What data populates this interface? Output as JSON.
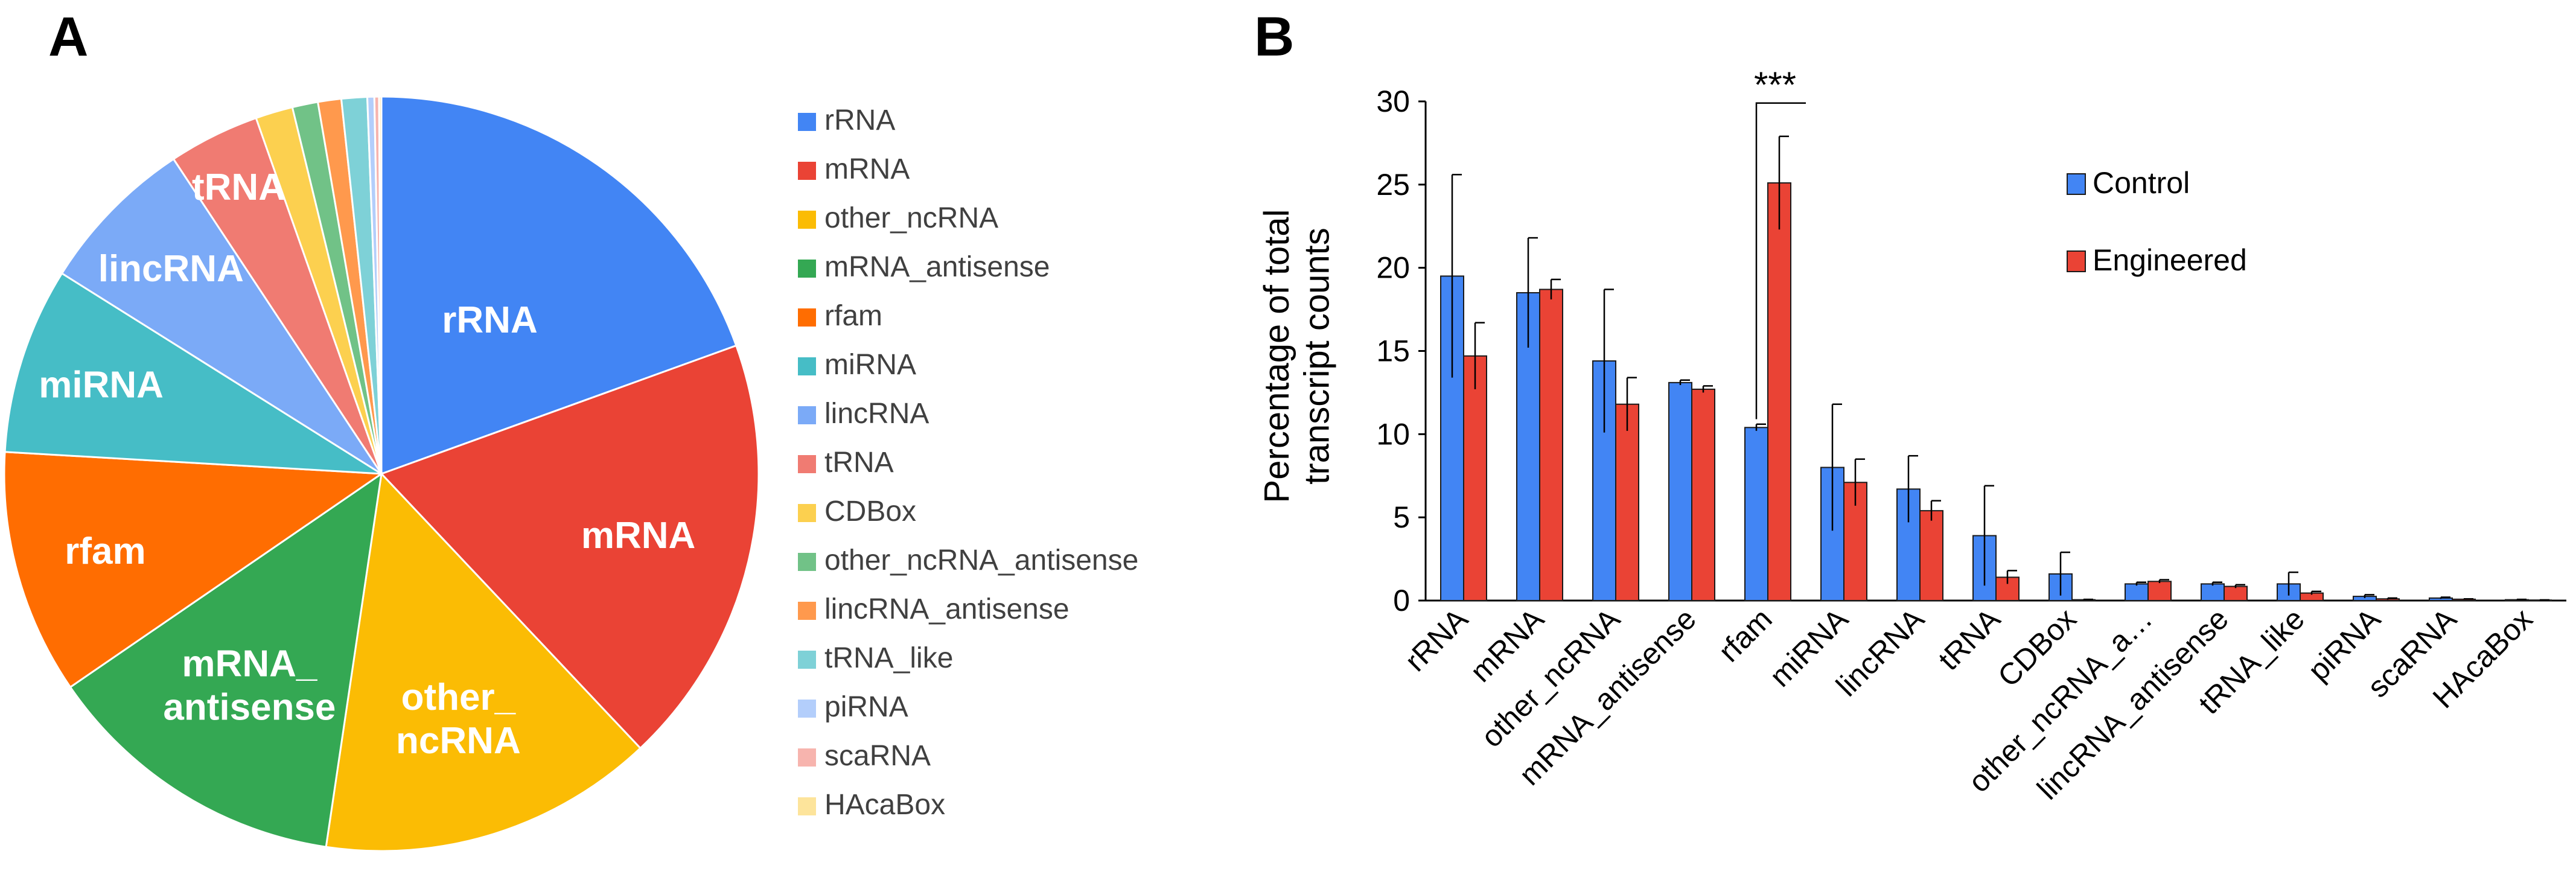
{
  "panel_labels": {
    "a": "A",
    "b": "B"
  },
  "chart_data": [
    {
      "type": "pie",
      "panel": "A",
      "categories": [
        "rRNA",
        "mRNA",
        "other_ncRNA",
        "mRNA_antisense",
        "rfam",
        "miRNA",
        "lincRNA",
        "tRNA",
        "CDBox",
        "other_ncRNA_antisense",
        "lincRNA_antisense",
        "tRNA_like",
        "piRNA",
        "scaRNA",
        "HAcaBox"
      ],
      "values": [
        19.5,
        18.5,
        14.4,
        13.1,
        10.5,
        8.0,
        6.8,
        3.9,
        1.6,
        1.1,
        1.0,
        1.1,
        0.3,
        0.2,
        0.1
      ],
      "colors": [
        "#4285F4",
        "#EA4335",
        "#FBBC04",
        "#34A853",
        "#FF6D01",
        "#46BDC6",
        "#7BAAF7",
        "#F07B72",
        "#FCD04F",
        "#71C287",
        "#FF994D",
        "#7ED1D7",
        "#B3CEFB",
        "#F7B4AE",
        "#FDE49B"
      ],
      "slice_labels": [
        {
          "category": "rRNA",
          "lines": [
            "rRNA"
          ],
          "bold": false
        },
        {
          "category": "mRNA",
          "lines": [
            "mRNA"
          ],
          "bold": true
        },
        {
          "category": "other_ncRNA",
          "lines": [
            "other_",
            "ncRNA"
          ],
          "bold": true
        },
        {
          "category": "mRNA_antisense",
          "lines": [
            "mRNA_",
            "antisense"
          ],
          "bold": true
        },
        {
          "category": "rfam",
          "lines": [
            "rfam"
          ],
          "bold": true
        },
        {
          "category": "miRNA",
          "lines": [
            "miRNA"
          ],
          "bold": true
        },
        {
          "category": "lincRNA",
          "lines": [
            "lincRNA"
          ],
          "bold": true
        },
        {
          "category": "tRNA",
          "lines": [
            "tRNA"
          ],
          "bold": true
        }
      ],
      "legend": [
        "rRNA",
        "mRNA",
        "other_ncRNA",
        "mRNA_antisense",
        "rfam",
        "miRNA",
        "lincRNA",
        "tRNA",
        "CDBox",
        "other_ncRNA_antisense",
        "lincRNA_antisense",
        "tRNA_like",
        "piRNA",
        "scaRNA",
        "HAcaBox"
      ],
      "legend_position": "right"
    },
    {
      "type": "bar",
      "panel": "B",
      "ylabel": "Percentage of total transcript counts",
      "ylabel_lines": [
        "Percentage of total",
        "transcript counts"
      ],
      "ylim": [
        0,
        30
      ],
      "yticks": [
        0,
        5,
        10,
        15,
        20,
        25,
        30
      ],
      "categories": [
        "rRNA",
        "mRNA",
        "other_ncRNA",
        "mRNA_antisense",
        "rfam",
        "miRNA",
        "lincRNA",
        "tRNA",
        "CDBox",
        "other_ncRNA_a…",
        "lincRNA_antisense",
        "tRNA_like",
        "piRNA",
        "scaRNA",
        "HAcaBox"
      ],
      "series": [
        {
          "name": "Control",
          "color": "#4285F4",
          "values": [
            19.5,
            18.5,
            14.4,
            13.1,
            10.4,
            8.0,
            6.7,
            3.9,
            1.6,
            1.0,
            1.0,
            1.0,
            0.25,
            0.15,
            0.05
          ],
          "errors": [
            6.1,
            3.3,
            4.3,
            0.15,
            0.2,
            3.8,
            2.0,
            3.0,
            1.3,
            0.1,
            0.1,
            0.7,
            0.1,
            0.05,
            0.02
          ]
        },
        {
          "name": "Engineered",
          "color": "#EA4335",
          "values": [
            14.7,
            18.7,
            11.8,
            12.7,
            25.1,
            7.1,
            5.4,
            1.4,
            0.05,
            1.15,
            0.85,
            0.45,
            0.1,
            0.08,
            0.03
          ],
          "errors": [
            2.0,
            0.6,
            1.6,
            0.2,
            2.8,
            1.4,
            0.6,
            0.4,
            0.02,
            0.1,
            0.1,
            0.1,
            0.05,
            0.02,
            0.01
          ]
        }
      ],
      "annotations": [
        {
          "text": "***",
          "category": "rfam"
        }
      ],
      "legend_position": "top-right"
    }
  ]
}
